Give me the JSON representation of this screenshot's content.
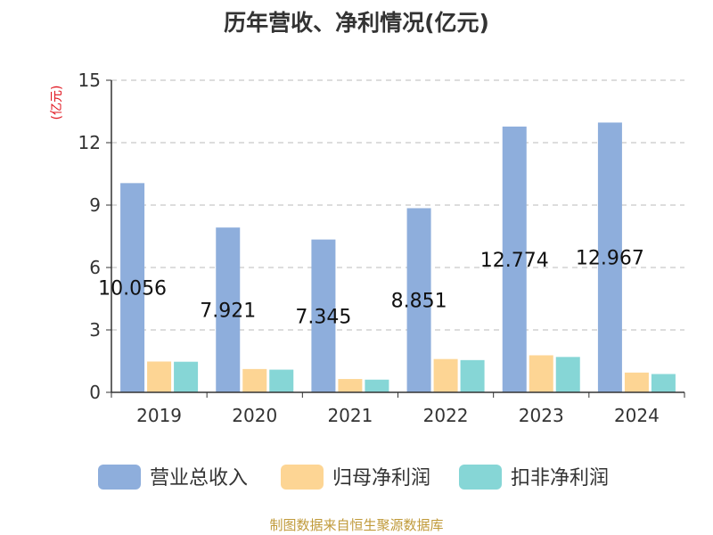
{
  "title": "历年营收、净利情况(亿元)",
  "source": "制图数据来自恒生聚源数据库",
  "chart_data": {
    "type": "bar",
    "title": "历年营收、净利情况(亿元)",
    "ylabel": "(亿元)",
    "ylim": [
      0,
      15
    ],
    "yticks": [
      0,
      3,
      6,
      9,
      12,
      15
    ],
    "grid": true,
    "legend_position": "bottom",
    "categories": [
      "2019",
      "2020",
      "2021",
      "2022",
      "2023",
      "2024"
    ],
    "series": [
      {
        "name": "营业总收入",
        "color": "#8eaedc",
        "values": [
          10.056,
          7.921,
          7.345,
          8.851,
          12.774,
          12.967
        ],
        "labels": [
          "10.056",
          "7.921",
          "7.345",
          "8.851",
          "12.774",
          "12.967"
        ]
      },
      {
        "name": "归母净利润",
        "color": "#fdd594",
        "values": [
          1.48,
          1.12,
          0.64,
          1.6,
          1.78,
          0.95
        ]
      },
      {
        "name": "扣非净利润",
        "color": "#86d6d6",
        "values": [
          1.47,
          1.09,
          0.61,
          1.55,
          1.7,
          0.88
        ]
      }
    ]
  }
}
